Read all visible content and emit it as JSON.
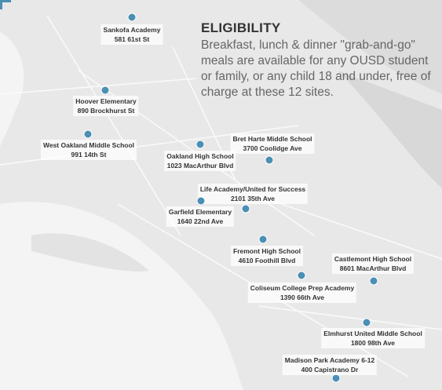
{
  "info": {
    "title": "ELIGIBILITY",
    "text": "Breakfast, lunch & dinner \"grab-and-go\" meals are available for any OUSD student or family, or any child 18 and under, free of charge at these 12 sites."
  },
  "sites": [
    {
      "name": "Sankofa Academy",
      "address": "581 61st St"
    },
    {
      "name": "Hoover Elementary",
      "address": "890 Brockhurst St"
    },
    {
      "name": "West Oakland Middle School",
      "address": "991 14th St"
    },
    {
      "name": "Oakland High School",
      "address": "1023 MacArthur Blvd"
    },
    {
      "name": "Bret Harte Middle School",
      "address": "3700 Coolidge Ave"
    },
    {
      "name": "Life Academy/United for Success",
      "address": "2101 35th Ave"
    },
    {
      "name": "Garfield Elementary",
      "address": "1640 22nd Ave"
    },
    {
      "name": "Fremont High School",
      "address": "4610 Foothill Blvd"
    },
    {
      "name": "Castlemont High School",
      "address": "8601 MacArthur Blvd"
    },
    {
      "name": "Coliseum College Prep Academy",
      "address": "1390 66th Ave"
    },
    {
      "name": "Elmhurst United Middle School",
      "address": "1800 98th Ave"
    },
    {
      "name": "Madison Park Academy 6-12",
      "address": "400 Capistrano Dr"
    }
  ]
}
